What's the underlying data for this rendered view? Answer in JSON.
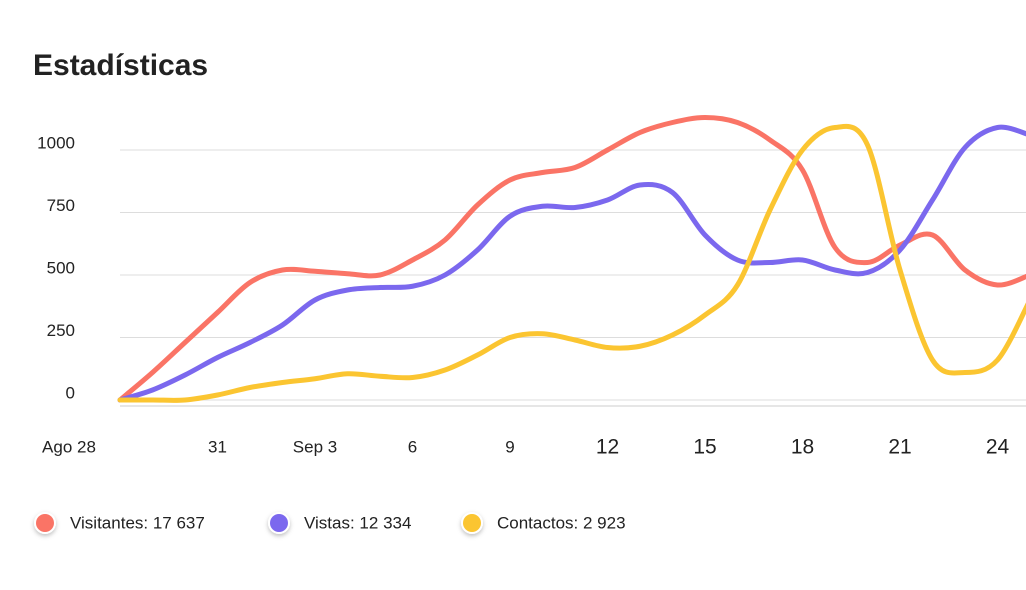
{
  "chart_data": {
    "type": "line",
    "title": "Estadísticas",
    "categories": [
      "Ago 28",
      null,
      null,
      "31",
      null,
      null,
      "Sep 3",
      null,
      null,
      "6",
      null,
      null,
      "9",
      null,
      null,
      "12",
      null,
      null,
      "15",
      null,
      null,
      "18",
      null,
      null,
      "21",
      null,
      null,
      "24",
      null
    ],
    "series": [
      {
        "name": "Visitantes: 17 637",
        "color": "#fa7466",
        "values": [
          0,
          110,
          230,
          350,
          470,
          520,
          515,
          505,
          500,
          560,
          640,
          780,
          880,
          910,
          930,
          1000,
          1070,
          1110,
          1130,
          1110,
          1040,
          920,
          610,
          550,
          620,
          660,
          520,
          460,
          500
        ]
      },
      {
        "name": "Vistas: 12 334",
        "color": "#7b68ee",
        "values": [
          0,
          40,
          100,
          170,
          230,
          300,
          400,
          440,
          450,
          455,
          500,
          600,
          735,
          775,
          770,
          800,
          860,
          830,
          660,
          560,
          550,
          560,
          520,
          510,
          600,
          800,
          1010,
          1090,
          1060
        ]
      },
      {
        "name": "Contactos: 2 923",
        "color": "#fbc531",
        "values": [
          0,
          0,
          0,
          20,
          50,
          70,
          85,
          105,
          95,
          90,
          120,
          180,
          250,
          265,
          240,
          210,
          215,
          260,
          340,
          460,
          760,
          1000,
          1090,
          1020,
          520,
          160,
          110,
          160,
          400
        ]
      }
    ],
    "ylim": [
      -40,
      1150
    ],
    "yticks": [
      0,
      250,
      500,
      750,
      1000
    ],
    "grid": true
  }
}
